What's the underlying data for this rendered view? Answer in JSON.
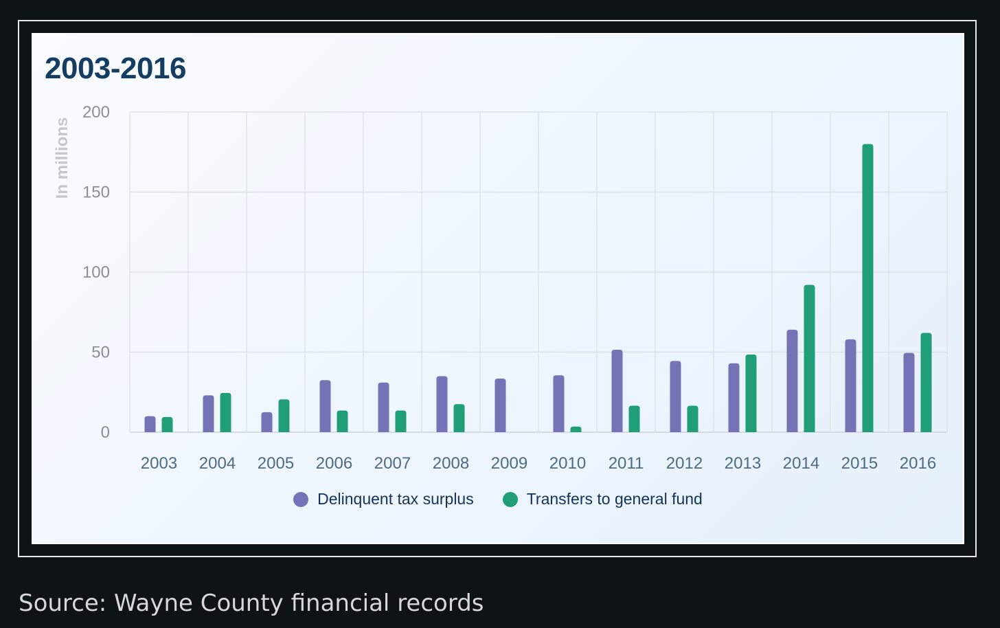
{
  "chart_data": {
    "type": "bar",
    "title": "2003-2016",
    "xlabel": "",
    "ylabel": "In millions",
    "ylim": [
      0,
      200
    ],
    "yticks": [
      0,
      50,
      100,
      150,
      200
    ],
    "grid": true,
    "legend_position": "bottom",
    "categories": [
      "2003",
      "2004",
      "2005",
      "2006",
      "2007",
      "2008",
      "2009",
      "2010",
      "2011",
      "2012",
      "2013",
      "2014",
      "2015",
      "2016"
    ],
    "series": [
      {
        "name": "Delinquent tax surplus",
        "color": "#7672b6",
        "values": [
          10,
          23,
          12.5,
          32.5,
          31,
          35,
          33.5,
          35.5,
          51.5,
          44.5,
          43,
          64,
          58,
          49.5
        ]
      },
      {
        "name": "Transfers to general fund",
        "color": "#1f9e78",
        "values": [
          9.5,
          24.5,
          20.5,
          13.5,
          13.5,
          17.5,
          0,
          3.5,
          16.5,
          16.5,
          48.5,
          92,
          180,
          62
        ]
      }
    ]
  },
  "source": "Source: Wayne County financial records"
}
